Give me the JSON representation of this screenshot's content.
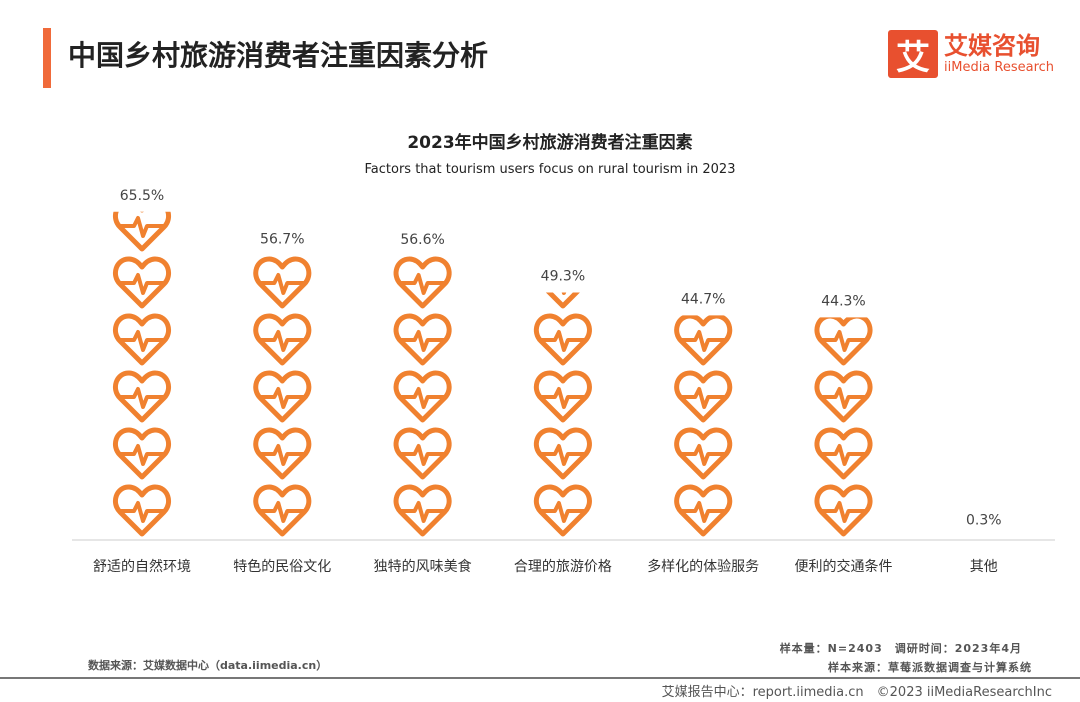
{
  "header": {
    "title": "中国乡村旅游消费者注重因素分析"
  },
  "logo": {
    "mark": "艾",
    "cn": "艾媒咨询",
    "en": "iiMedia Research"
  },
  "chart_data": {
    "type": "bar",
    "title": "2023年中国乡村旅游消费者注重因素",
    "subtitle": "Factors that tourism users focus on rural tourism in 2023",
    "categories": [
      "舒适的自然环境",
      "特色的民俗文化",
      "独特的风味美食",
      "合理的旅游价格",
      "多样化的体验服务",
      "便利的交通条件",
      "其他"
    ],
    "values": [
      65.5,
      56.7,
      56.6,
      49.3,
      44.7,
      44.3,
      0.3
    ],
    "labels": [
      "65.5%",
      "56.7%",
      "56.6%",
      "49.3%",
      "44.7%",
      "44.3%",
      "0.3%"
    ],
    "unit": "%",
    "mark": "heart-pulse-icon",
    "color": "#f0812f"
  },
  "footer": {
    "sample": "样本量：N=2403　调研时间：2023年4月",
    "sample_source": "样本来源：草莓派数据调查与计算系统",
    "data_source": "数据来源：艾媒数据中心（data.iimedia.cn）",
    "report": "艾媒报告中心：report.iimedia.cn　©2023 iiMediaResearchInc"
  }
}
